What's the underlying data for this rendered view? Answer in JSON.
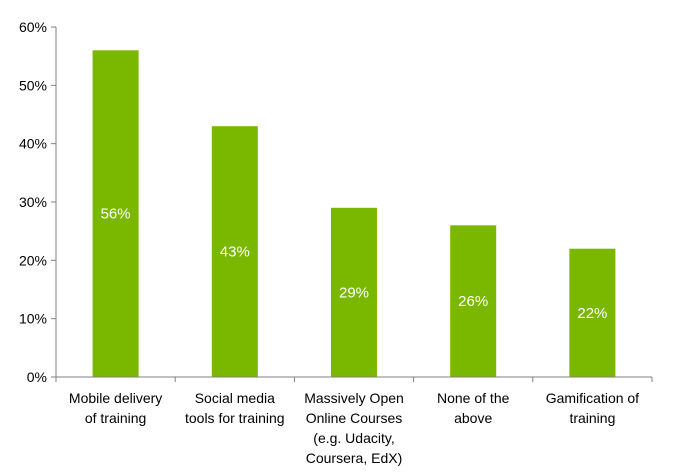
{
  "chart_data": {
    "type": "bar",
    "categories": [
      [
        "Mobile delivery",
        "of training"
      ],
      [
        "Social media",
        "tools for training"
      ],
      [
        "Massively Open",
        "Online Courses",
        "(e.g. Udacity,",
        "Coursera, EdX)"
      ],
      [
        "None of the",
        "above"
      ],
      [
        "Gamification of",
        "training"
      ]
    ],
    "values": [
      56,
      43,
      29,
      26,
      22
    ],
    "data_labels": [
      "56%",
      "43%",
      "29%",
      "26%",
      "22%"
    ],
    "y_ticks": [
      "0%",
      "10%",
      "20%",
      "30%",
      "40%",
      "50%",
      "60%"
    ],
    "ylim": [
      0,
      60
    ],
    "title": "",
    "xlabel": "",
    "ylabel": "",
    "grid": false,
    "legend": "none",
    "bar_color": "#7ab800",
    "axis_color": "#808080"
  }
}
